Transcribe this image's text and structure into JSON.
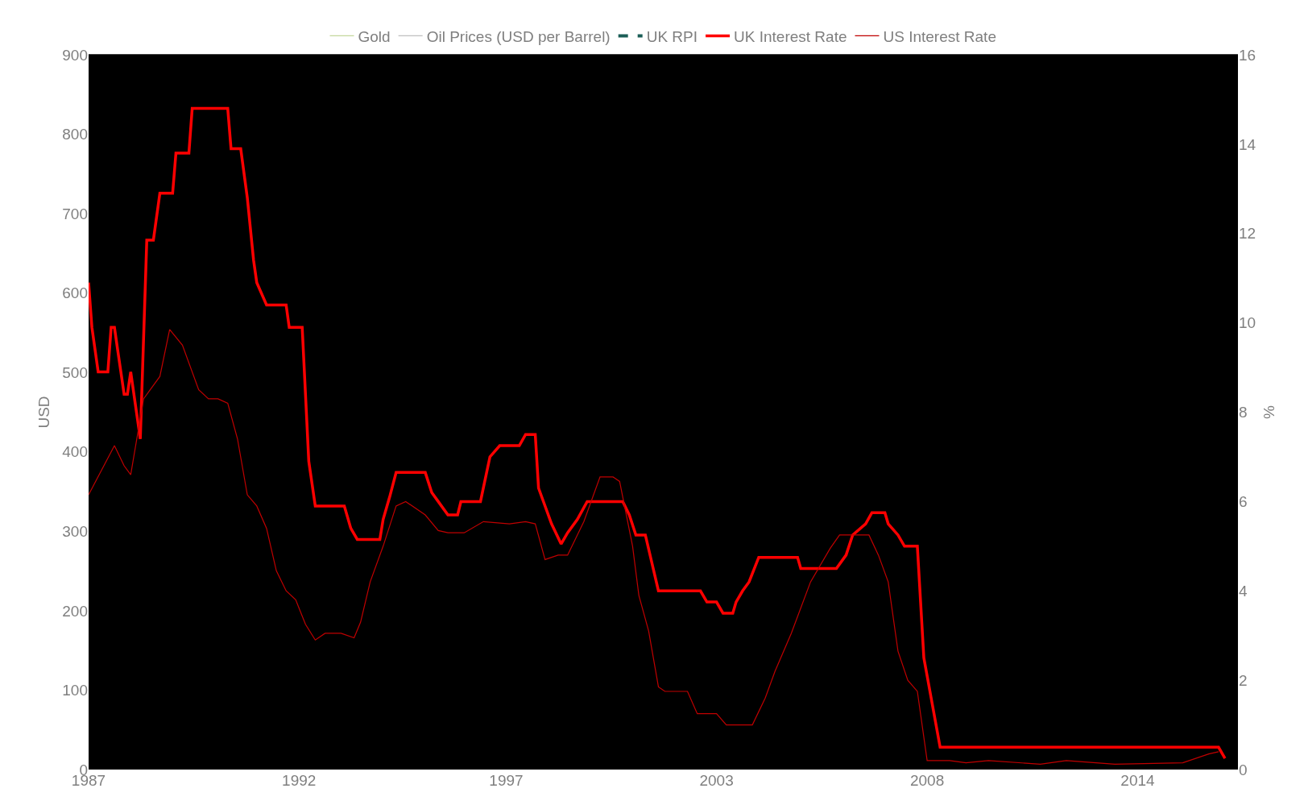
{
  "chart_data": {
    "type": "line",
    "ylabel": "USD",
    "y2label": "%",
    "xlim": [
      "1987-01",
      "2016-08"
    ],
    "xticks": [
      {
        "value": "1987-01",
        "label": "1987"
      },
      {
        "value": "1992-06",
        "label": "1992"
      },
      {
        "value": "1997-10",
        "label": "1997"
      },
      {
        "value": "2003-03",
        "label": "2003"
      },
      {
        "value": "2008-08",
        "label": "2008"
      },
      {
        "value": "2014-01",
        "label": "2014"
      }
    ],
    "ylim": [
      0,
      900
    ],
    "yticks": [
      0,
      100,
      200,
      300,
      400,
      500,
      600,
      700,
      800,
      900
    ],
    "y2lim": [
      0,
      16
    ],
    "y2ticks": [
      0,
      2,
      4,
      6,
      8,
      10,
      12,
      14,
      16
    ],
    "grid": false,
    "legend": "top",
    "series": [
      {
        "name": "Gold",
        "color": "#c4d79b"
      },
      {
        "name": "Oil Prices (USD per Barrel)",
        "color": "#bfbfbf"
      },
      {
        "name": "UK RPI",
        "color": "#1b5e57",
        "line_style": "dashed",
        "axis": "y2"
      },
      {
        "name": "UK Interest Rate",
        "color": "#ff0000",
        "axis": "y2",
        "x": [
          "1987-01",
          "1987-02",
          "1987-04",
          "1987-07",
          "1987-08",
          "1987-09",
          "1987-10",
          "1987-12",
          "1988-01",
          "1988-02",
          "1988-05",
          "1988-07",
          "1988-09",
          "1988-11",
          "1989-03",
          "1989-04",
          "1989-08",
          "1989-09",
          "1990-08",
          "1990-09",
          "1990-12",
          "1991-02",
          "1991-04",
          "1991-05",
          "1991-08",
          "1992-02",
          "1992-03",
          "1992-07",
          "1992-09",
          "1992-11",
          "1993-08",
          "1993-10",
          "1993-12",
          "1994-07",
          "1994-08",
          "1994-10",
          "1994-12",
          "1995-09",
          "1995-11",
          "1996-01",
          "1996-04",
          "1996-07",
          "1996-08",
          "1997-02",
          "1997-05",
          "1997-08",
          "1998-02",
          "1998-04",
          "1998-07",
          "1998-08",
          "1998-12",
          "1999-03",
          "1999-05",
          "1999-08",
          "1999-11",
          "2000-10",
          "2000-12",
          "2001-02",
          "2001-05",
          "2001-09",
          "2002-10",
          "2002-12",
          "2003-03",
          "2003-05",
          "2003-08",
          "2003-09",
          "2003-11",
          "2004-01",
          "2004-04",
          "2005-04",
          "2005-05",
          "2006-04",
          "2006-07",
          "2006-09",
          "2007-01",
          "2007-03",
          "2007-07",
          "2007-08",
          "2007-11",
          "2008-01",
          "2008-05",
          "2008-07",
          "2008-12",
          "2016-02",
          "2016-04"
        ],
        "values": [
          10.9,
          9.9,
          8.9,
          8.9,
          9.9,
          9.9,
          9.4,
          8.4,
          8.4,
          8.9,
          7.4,
          11.85,
          11.85,
          12.9,
          12.9,
          13.8,
          13.8,
          14.8,
          14.8,
          13.9,
          13.9,
          12.8,
          11.4,
          10.9,
          10.4,
          10.4,
          9.9,
          9.9,
          6.9,
          5.9,
          5.9,
          5.4,
          5.15,
          5.15,
          5.6,
          6.1,
          6.65,
          6.65,
          6.2,
          6.0,
          5.7,
          5.7,
          6.0,
          6.0,
          7.0,
          7.25,
          7.25,
          7.5,
          7.5,
          6.3,
          5.5,
          5.05,
          5.3,
          5.6,
          6.0,
          6.0,
          5.7,
          5.25,
          5.25,
          4.0,
          4.0,
          3.75,
          3.75,
          3.5,
          3.5,
          3.75,
          4.0,
          4.2,
          4.75,
          4.75,
          4.5,
          4.5,
          4.8,
          5.25,
          5.5,
          5.75,
          5.75,
          5.5,
          5.25,
          5.0,
          5.0,
          2.5,
          0.5,
          0.5,
          0.25
        ]
      },
      {
        "name": "US Interest Rate",
        "color": "#c00000",
        "axis": "y2",
        "x": [
          "1987-01",
          "1987-09",
          "1987-12",
          "1988-02",
          "1988-06",
          "1988-11",
          "1989-02",
          "1989-06",
          "1989-11",
          "1990-02",
          "1990-05",
          "1990-08",
          "1990-11",
          "1991-02",
          "1991-05",
          "1991-08",
          "1991-11",
          "1992-02",
          "1992-05",
          "1992-08",
          "1992-11",
          "1993-02",
          "1993-07",
          "1993-11",
          "1994-01",
          "1994-04",
          "1994-08",
          "1994-12",
          "1995-03",
          "1995-09",
          "1996-01",
          "1996-04",
          "1996-09",
          "1997-03",
          "1997-11",
          "1998-04",
          "1998-07",
          "1998-10",
          "1999-02",
          "1999-05",
          "1999-10",
          "2000-03",
          "2000-07",
          "2000-09",
          "2001-01",
          "2001-03",
          "2001-06",
          "2001-09",
          "2001-11",
          "2002-06",
          "2002-09",
          "2003-03",
          "2003-06",
          "2004-02",
          "2004-06",
          "2004-09",
          "2005-02",
          "2005-08",
          "2006-02",
          "2006-05",
          "2007-02",
          "2007-05",
          "2007-08",
          "2007-11",
          "2008-02",
          "2008-05",
          "2008-08",
          "2009-03",
          "2009-08",
          "2010-03",
          "2011-07",
          "2012-03",
          "2013-06",
          "2015-03",
          "2015-11",
          "2016-02"
        ],
        "values": [
          6.15,
          7.25,
          6.8,
          6.6,
          8.3,
          8.8,
          9.85,
          9.5,
          8.5,
          8.3,
          8.3,
          8.2,
          7.4,
          6.15,
          5.9,
          5.4,
          4.45,
          4.0,
          3.8,
          3.25,
          2.9,
          3.05,
          3.05,
          2.95,
          3.3,
          4.2,
          5.0,
          5.9,
          6.0,
          5.7,
          5.35,
          5.3,
          5.3,
          5.55,
          5.5,
          5.55,
          5.5,
          4.7,
          4.8,
          4.8,
          5.55,
          6.55,
          6.55,
          6.45,
          5.0,
          3.9,
          3.1,
          1.85,
          1.75,
          1.75,
          1.25,
          1.25,
          1.0,
          1.0,
          1.6,
          2.2,
          3.05,
          4.2,
          4.95,
          5.25,
          5.25,
          4.8,
          4.2,
          2.65,
          2.0,
          1.75,
          0.2,
          0.2,
          0.15,
          0.2,
          0.12,
          0.2,
          0.12,
          0.15,
          0.35,
          0.4
        ]
      }
    ]
  }
}
